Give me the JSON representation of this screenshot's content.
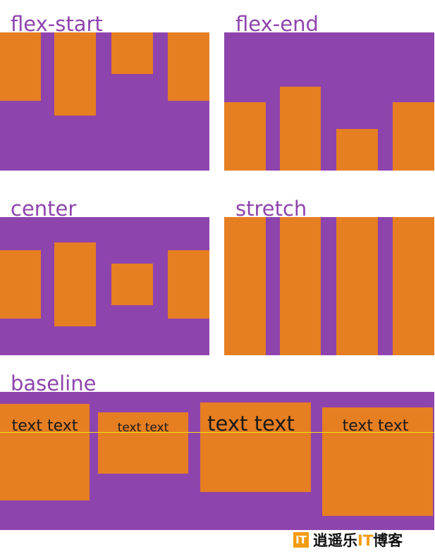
{
  "labels": {
    "flex_start": "flex-start",
    "flex_end": "flex-end",
    "center": "center",
    "stretch": "stretch",
    "baseline": "baseline"
  },
  "baseline_items": [
    "text text",
    "text text",
    "text text",
    "text text"
  ],
  "logo": {
    "mark": "IT",
    "text_before": "逍遥乐",
    "text_accent": "IT",
    "text_after": "博客"
  },
  "colors": {
    "container": "#8e44ad",
    "item": "#e67e22",
    "baseline_guide": "#f1e40f",
    "logo_accent": "#f39c12"
  }
}
